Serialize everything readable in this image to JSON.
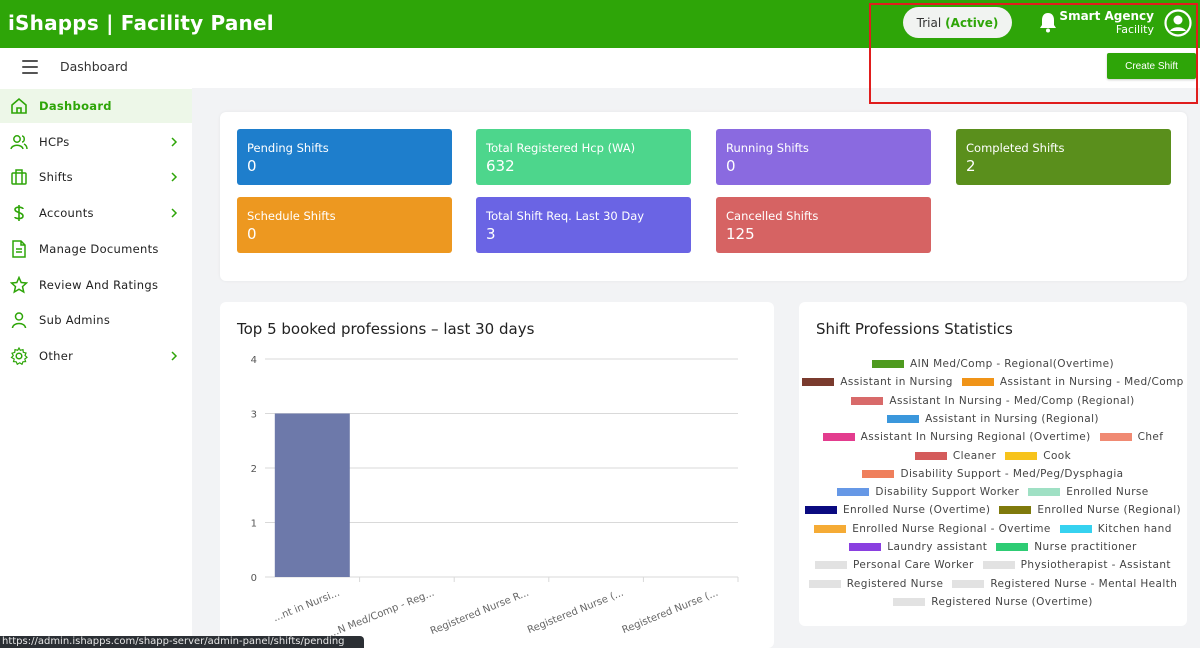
{
  "header": {
    "brand": "iShapps | Facility Panel",
    "trial_label": "Trial",
    "trial_status": "(Active)",
    "agency_name": "Smart Agency",
    "agency_role": "Facility"
  },
  "subheader": {
    "crumb": "Dashboard",
    "create_button": "Create Shift"
  },
  "sidebar": {
    "items": [
      {
        "label": "Dashboard",
        "icon": "home-icon",
        "active": true
      },
      {
        "label": "HCPs",
        "icon": "users-icon",
        "chevron": true
      },
      {
        "label": "Shifts",
        "icon": "briefcase-icon",
        "chevron": true
      },
      {
        "label": "Accounts",
        "icon": "dollar-icon",
        "chevron": true
      },
      {
        "label": "Manage Documents",
        "icon": "document-icon"
      },
      {
        "label": "Review And Ratings",
        "icon": "star-icon"
      },
      {
        "label": "Sub Admins",
        "icon": "user-icon"
      },
      {
        "label": "Other",
        "icon": "gear-icon",
        "chevron": true
      }
    ]
  },
  "tiles": [
    {
      "label": "Pending Shifts",
      "value": "0",
      "color": "#1e7ecc"
    },
    {
      "label": "Total Registered Hcp (WA)",
      "value": "632",
      "color": "#4dd68c"
    },
    {
      "label": "Running Shifts",
      "value": "0",
      "color": "#8a6ae0"
    },
    {
      "label": "Completed Shifts",
      "value": "2",
      "color": "#5a8f1c"
    },
    {
      "label": "Schedule Shifts",
      "value": "0",
      "color": "#ed9820"
    },
    {
      "label": "Total Shift Req. Last 30 Day",
      "value": "3",
      "color": "#6a64e4"
    },
    {
      "label": "Cancelled Shifts",
      "value": "125",
      "color": "#d66363"
    }
  ],
  "chart_data": {
    "type": "bar",
    "title": "Top 5 booked professions – last 30 days",
    "categories": [
      "...nt in Nursi...",
      "...N Med/Comp - Reg...",
      "Registered Nurse R...",
      "Registered Nurse (...",
      "Registered Nurse (..."
    ],
    "values": [
      3,
      0,
      0,
      0,
      0
    ],
    "ylim": [
      0,
      4
    ],
    "yticks": [
      "0",
      "1",
      "2",
      "3",
      "4"
    ],
    "bar_color": "#6d79aa",
    "grid": true
  },
  "shift_stats": {
    "title": "Shift Professions Statistics",
    "legend_rows": [
      [
        {
          "label": "AIN Med/Comp - Regional(Overtime)",
          "color": "#4e9a1f"
        }
      ],
      [
        {
          "label": "Assistant in Nursing",
          "color": "#7a3b2e"
        },
        {
          "label": "Assistant in Nursing - Med/Comp",
          "color": "#f09418"
        }
      ],
      [
        {
          "label": "Assistant In Nursing - Med/Comp (Regional)",
          "color": "#d86a6a"
        }
      ],
      [
        {
          "label": "Assistant in Nursing (Regional)",
          "color": "#3b97dc"
        }
      ],
      [
        {
          "label": "Assistant In Nursing Regional (Overtime)",
          "color": "#e33c8e"
        },
        {
          "label": "Chef",
          "color": "#f08a73"
        }
      ],
      [
        {
          "label": "Cleaner",
          "color": "#d45b5b"
        },
        {
          "label": "Cook",
          "color": "#f7c31b"
        }
      ],
      [
        {
          "label": "Disability Support - Med/Peg/Dysphagia",
          "color": "#ef7f5c"
        }
      ],
      [
        {
          "label": "Disability Support Worker",
          "color": "#6698e6"
        },
        {
          "label": "Enrolled Nurse",
          "color": "#9fe0c4"
        }
      ],
      [
        {
          "label": "Enrolled Nurse (Overtime)",
          "color": "#0a0a80"
        },
        {
          "label": "Enrolled Nurse (Regional)",
          "color": "#7f7a0c"
        }
      ],
      [
        {
          "label": "Enrolled Nurse Regional - Overtime",
          "color": "#f5ab35"
        },
        {
          "label": "Kitchen hand",
          "color": "#36d2f0"
        }
      ],
      [
        {
          "label": "Laundry assistant",
          "color": "#8a3fe0"
        },
        {
          "label": "Nurse practitioner",
          "color": "#2ecc74"
        }
      ],
      [
        {
          "label": "Personal Care Worker",
          "color": "#e2e2e2"
        },
        {
          "label": "Physiotherapist - Assistant",
          "color": "#e2e2e2"
        }
      ],
      [
        {
          "label": "Registered Nurse",
          "color": "#e2e2e2"
        },
        {
          "label": "Registered Nurse - Mental Health",
          "color": "#e2e2e2"
        }
      ],
      [
        {
          "label": "Registered Nurse (Overtime)",
          "color": "#e2e2e2"
        }
      ]
    ]
  },
  "status_url": "https://admin.ishapps.com/shapp-server/admin-panel/shifts/pending"
}
